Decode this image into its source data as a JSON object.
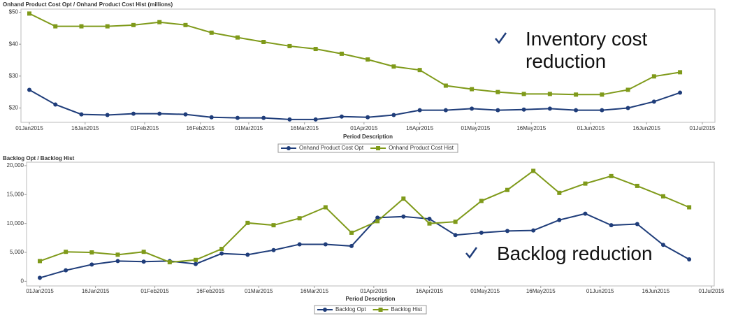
{
  "chart_data": [
    {
      "type": "line",
      "title": "Onhand Product Cost Opt / Onhand Product Cost Hist (millions)",
      "xlabel": "Period Description",
      "annotation": "Inventory cost reduction",
      "x": [
        "2015-01-01",
        "2015-01-08",
        "2015-01-15",
        "2015-01-22",
        "2015-01-29",
        "2015-02-05",
        "2015-02-12",
        "2015-02-19",
        "2015-02-26",
        "2015-03-05",
        "2015-03-12",
        "2015-03-19",
        "2015-03-26",
        "2015-04-02",
        "2015-04-09",
        "2015-04-16",
        "2015-04-23",
        "2015-04-30",
        "2015-05-07",
        "2015-05-14",
        "2015-05-21",
        "2015-05-28",
        "2015-06-04",
        "2015-06-11",
        "2015-06-18",
        "2015-06-25"
      ],
      "series": [
        {
          "name": "Onhand Product Cost Opt",
          "color": "#1f3d7a",
          "marker": "circle",
          "values": [
            25.7,
            21.1,
            18.0,
            17.8,
            18.2,
            18.2,
            18.0,
            17.1,
            16.9,
            16.9,
            16.4,
            16.4,
            17.3,
            17.1,
            17.8,
            19.3,
            19.3,
            19.8,
            19.3,
            19.5,
            19.8,
            19.3,
            19.3,
            20.0,
            22.0,
            24.8
          ]
        },
        {
          "name": "Onhand Product Cost Hist",
          "color": "#7f9a1a",
          "marker": "square",
          "values": [
            49.6,
            45.6,
            45.6,
            45.6,
            46.0,
            46.9,
            46.0,
            43.6,
            42.1,
            40.7,
            39.4,
            38.5,
            37.0,
            35.2,
            33.0,
            31.9,
            27.0,
            25.9,
            25.0,
            24.4,
            24.4,
            24.2,
            24.2,
            25.7,
            29.9,
            31.2
          ]
        }
      ],
      "xlim": [
        "2015-01-01",
        "2015-07-01"
      ],
      "xticks": [
        {
          "value": "2015-01-01",
          "label": "01Jan2015"
        },
        {
          "value": "2015-01-16",
          "label": "16Jan2015"
        },
        {
          "value": "2015-02-01",
          "label": "01Feb2015"
        },
        {
          "value": "2015-02-16",
          "label": "16Feb2015"
        },
        {
          "value": "2015-03-01",
          "label": "01Mar2015"
        },
        {
          "value": "2015-03-16",
          "label": "16Mar2015"
        },
        {
          "value": "2015-04-01",
          "label": "01Apr2015"
        },
        {
          "value": "2015-04-16",
          "label": "16Apr2015"
        },
        {
          "value": "2015-05-01",
          "label": "01May2015"
        },
        {
          "value": "2015-05-16",
          "label": "16May2015"
        },
        {
          "value": "2015-06-01",
          "label": "01Jun2015"
        },
        {
          "value": "2015-06-16",
          "label": "16Jun2015"
        },
        {
          "value": "2015-07-01",
          "label": "01Jul2015"
        }
      ],
      "ylim": [
        15.5,
        51
      ],
      "yticks": [
        {
          "value": 20,
          "label": "$20"
        },
        {
          "value": 30,
          "label": "$30"
        },
        {
          "value": 40,
          "label": "$40"
        },
        {
          "value": 50,
          "label": "$50"
        }
      ],
      "grid": false,
      "legend": "bottom"
    },
    {
      "type": "line",
      "title": "Backlog Opt / Backlog Hist",
      "xlabel": "Period Description",
      "annotation": "Backlog reduction",
      "x": [
        "2015-01-01",
        "2015-01-08",
        "2015-01-15",
        "2015-01-22",
        "2015-01-29",
        "2015-02-05",
        "2015-02-12",
        "2015-02-19",
        "2015-02-26",
        "2015-03-05",
        "2015-03-12",
        "2015-03-19",
        "2015-03-26",
        "2015-04-02",
        "2015-04-09",
        "2015-04-16",
        "2015-04-23",
        "2015-04-30",
        "2015-05-07",
        "2015-05-14",
        "2015-05-21",
        "2015-05-28",
        "2015-06-04",
        "2015-06-11",
        "2015-06-18",
        "2015-06-25"
      ],
      "series": [
        {
          "name": "Backlog Opt",
          "color": "#1f3d7a",
          "marker": "circle",
          "values": [
            600,
            1900,
            2900,
            3500,
            3400,
            3500,
            3000,
            4800,
            4600,
            5400,
            6400,
            6400,
            6100,
            11000,
            11200,
            10800,
            8000,
            8400,
            8700,
            8800,
            10600,
            11700,
            9700,
            9900,
            6300,
            3800
          ]
        },
        {
          "name": "Backlog Hist",
          "color": "#7f9a1a",
          "marker": "square",
          "values": [
            3500,
            5100,
            5000,
            4600,
            5100,
            3300,
            3700,
            5600,
            10100,
            9700,
            10900,
            12800,
            8400,
            10400,
            14300,
            10000,
            10300,
            13900,
            15800,
            19100,
            15300,
            16900,
            18200,
            16500,
            14700,
            12800
          ]
        }
      ],
      "xlim": [
        "2015-01-01",
        "2015-07-01"
      ],
      "xticks": [
        {
          "value": "2015-01-01",
          "label": "01Jan2015"
        },
        {
          "value": "2015-01-16",
          "label": "16Jan2015"
        },
        {
          "value": "2015-02-01",
          "label": "01Feb2015"
        },
        {
          "value": "2015-02-16",
          "label": "16Feb2015"
        },
        {
          "value": "2015-03-01",
          "label": "01Mar2015"
        },
        {
          "value": "2015-03-16",
          "label": "16Mar2015"
        },
        {
          "value": "2015-04-01",
          "label": "01Apr2015"
        },
        {
          "value": "2015-04-16",
          "label": "16Apr2015"
        },
        {
          "value": "2015-05-01",
          "label": "01May2015"
        },
        {
          "value": "2015-05-16",
          "label": "16May2015"
        },
        {
          "value": "2015-06-01",
          "label": "01Jun2015"
        },
        {
          "value": "2015-06-16",
          "label": "16Jun2015"
        },
        {
          "value": "2015-07-01",
          "label": "01Jul2015"
        }
      ],
      "ylim": [
        -800,
        20600
      ],
      "yticks": [
        0,
        {
          "value": 5000,
          "label": "5,000"
        },
        {
          "value": 10000,
          "label": "10,000"
        },
        {
          "value": 15000,
          "label": "15,000"
        },
        {
          "value": 20000,
          "label": "20,000"
        }
      ],
      "grid": false,
      "legend": "bottom"
    }
  ]
}
